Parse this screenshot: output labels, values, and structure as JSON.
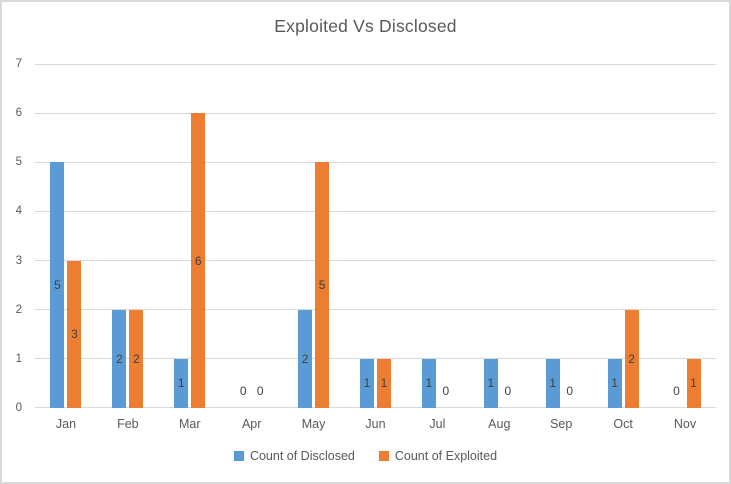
{
  "chart_data": {
    "type": "bar",
    "title": "Exploited Vs Disclosed",
    "categories": [
      "Jan",
      "Feb",
      "Mar",
      "Apr",
      "May",
      "Jun",
      "Jul",
      "Aug",
      "Sep",
      "Oct",
      "Nov"
    ],
    "series": [
      {
        "name": "Count of Disclosed",
        "color": "#5B9BD5",
        "values": [
          5,
          2,
          1,
          0,
          2,
          1,
          1,
          1,
          1,
          1,
          0
        ]
      },
      {
        "name": "Count of Exploited",
        "color": "#ED7D31",
        "values": [
          3,
          2,
          6,
          0,
          5,
          1,
          0,
          0,
          0,
          2,
          1
        ]
      }
    ],
    "xlabel": "",
    "ylabel": "",
    "ylim": [
      0,
      7
    ],
    "ytick_interval": 1,
    "yticks": [
      0,
      1,
      2,
      3,
      4,
      5,
      6,
      7
    ],
    "grid": true,
    "data_labels": "inside-center",
    "legend_position": "bottom",
    "colors": {
      "title_text": "#595959",
      "axis_text": "#595959",
      "data_label_text": "#404040",
      "gridline": "#D9D9D9",
      "chart_border": "#D9D9D9",
      "background": "#FFFFFF"
    }
  }
}
